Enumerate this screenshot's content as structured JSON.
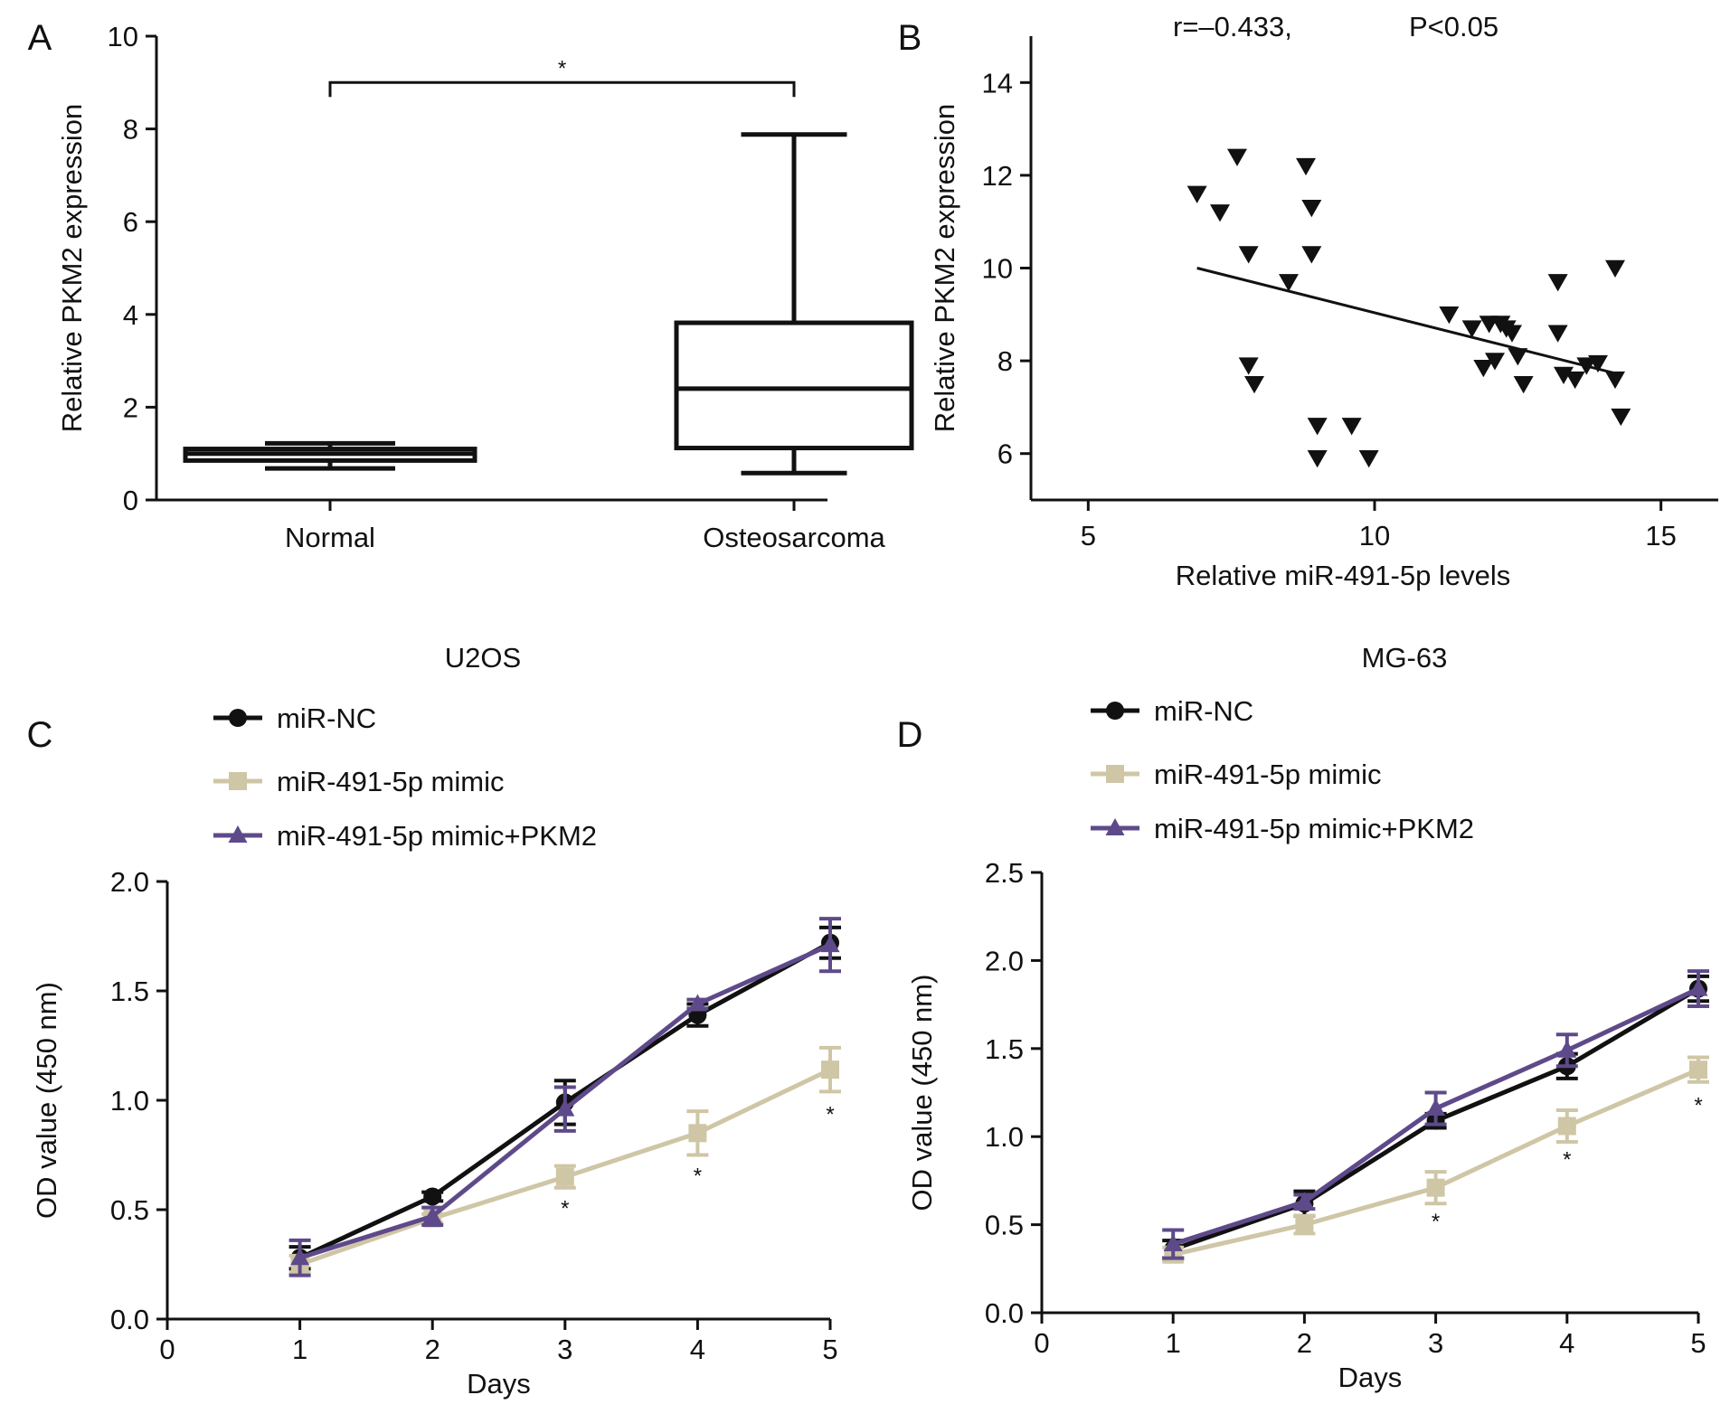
{
  "chart_data": [
    {
      "id": "A",
      "panel_label": "A",
      "type": "box",
      "ylabel": "Relative PKM2 expression",
      "xlabel": "",
      "ylim": [
        0,
        10
      ],
      "yticks": [
        0,
        2,
        4,
        6,
        8,
        10
      ],
      "categories": [
        "Normal",
        "Osteosarcoma"
      ],
      "boxes": [
        {
          "name": "Normal",
          "min": 0.68,
          "q1": 0.85,
          "median": 1.0,
          "q3": 1.1,
          "max": 1.22
        },
        {
          "name": "Osteosarcoma",
          "min": 0.58,
          "q1": 1.12,
          "median": 2.4,
          "q3": 3.82,
          "max": 7.88
        }
      ],
      "significance": {
        "label": "*",
        "level": 9.0,
        "between": [
          "Normal",
          "Osteosarcoma"
        ]
      }
    },
    {
      "id": "B",
      "panel_label": "B",
      "type": "scatter",
      "annotation_r": "r=–0.433,",
      "annotation_p": "P<0.05",
      "xlabel": "Relative miR-491-5p levels",
      "ylabel": "Relative PKM2 expression",
      "xlim": [
        4,
        16
      ],
      "ylim": [
        5,
        15
      ],
      "xticks": [
        5,
        10,
        15
      ],
      "yticks": [
        6,
        8,
        10,
        12,
        14
      ],
      "points": [
        [
          6.9,
          11.6
        ],
        [
          7.3,
          11.2
        ],
        [
          7.6,
          12.4
        ],
        [
          7.8,
          10.3
        ],
        [
          7.8,
          7.9
        ],
        [
          7.9,
          7.5
        ],
        [
          8.5,
          9.7
        ],
        [
          8.8,
          12.2
        ],
        [
          8.9,
          11.3
        ],
        [
          8.9,
          10.3
        ],
        [
          9.0,
          6.6
        ],
        [
          9.0,
          5.9
        ],
        [
          9.6,
          6.6
        ],
        [
          9.9,
          5.9
        ],
        [
          11.3,
          9.0
        ],
        [
          11.7,
          8.7
        ],
        [
          12.0,
          8.8
        ],
        [
          12.1,
          8.0
        ],
        [
          12.2,
          8.8
        ],
        [
          12.3,
          8.7
        ],
        [
          12.4,
          8.6
        ],
        [
          12.5,
          8.1
        ],
        [
          12.6,
          7.5
        ],
        [
          11.9,
          7.85
        ],
        [
          13.2,
          9.7
        ],
        [
          13.2,
          8.6
        ],
        [
          13.3,
          7.7
        ],
        [
          13.5,
          7.6
        ],
        [
          13.7,
          7.9
        ],
        [
          13.9,
          7.95
        ],
        [
          14.2,
          7.6
        ],
        [
          14.2,
          10.0
        ],
        [
          14.3,
          6.8
        ]
      ],
      "fit_line": {
        "x": [
          6.9,
          14.3
        ],
        "y": [
          10.0,
          7.7
        ]
      }
    },
    {
      "id": "C",
      "panel_label": "C",
      "type": "line",
      "title": "U2OS",
      "xlabel": "Days",
      "ylabel": "OD value (450 nm)",
      "xlim": [
        0,
        5
      ],
      "ylim": [
        0,
        2.0
      ],
      "xticks": [
        0,
        1,
        2,
        3,
        4,
        5
      ],
      "yticks": [
        0.0,
        0.5,
        1.0,
        1.5,
        2.0
      ],
      "ytick_labels": [
        "0.0",
        "0.5",
        "1.0",
        "1.5",
        "2.0"
      ],
      "x": [
        1,
        2,
        3,
        4,
        5
      ],
      "series": [
        {
          "name": "miR-NC",
          "color": "#111111",
          "marker": "circle",
          "values": [
            0.28,
            0.56,
            0.99,
            1.39,
            1.72
          ],
          "errors": [
            0.05,
            0.02,
            0.1,
            0.05,
            0.07
          ]
        },
        {
          "name": "miR-491-5p mimic",
          "color": "#cfc6a6",
          "marker": "square",
          "values": [
            0.25,
            0.46,
            0.65,
            0.85,
            1.14
          ],
          "errors": [
            0.04,
            0.02,
            0.05,
            0.1,
            0.1
          ]
        },
        {
          "name": "miR-491-5p mimic+PKM2",
          "color": "#5e4a8a",
          "marker": "triangle",
          "values": [
            0.28,
            0.47,
            0.96,
            1.44,
            1.71
          ],
          "errors": [
            0.08,
            0.04,
            0.1,
            0.02,
            0.12
          ]
        }
      ],
      "stars": [
        {
          "x": 3,
          "y": 0.53,
          "label": "*"
        },
        {
          "x": 4,
          "y": 0.68,
          "label": "*"
        },
        {
          "x": 5,
          "y": 0.96,
          "label": "*"
        }
      ]
    },
    {
      "id": "D",
      "panel_label": "D",
      "type": "line",
      "title": "MG-63",
      "xlabel": "Days",
      "ylabel": "OD value (450 nm)",
      "xlim": [
        0,
        5
      ],
      "ylim": [
        0,
        2.5
      ],
      "xticks": [
        0,
        1,
        2,
        3,
        4,
        5
      ],
      "yticks": [
        0.0,
        0.5,
        1.0,
        1.5,
        2.0,
        2.5
      ],
      "ytick_labels": [
        "0.0",
        "0.5",
        "1.0",
        "1.5",
        "2.0",
        "2.5"
      ],
      "x": [
        1,
        2,
        3,
        4,
        5
      ],
      "series": [
        {
          "name": "miR-NC",
          "color": "#111111",
          "marker": "circle",
          "values": [
            0.36,
            0.62,
            1.09,
            1.4,
            1.84
          ],
          "errors": [
            0.05,
            0.07,
            0.04,
            0.07,
            0.07
          ]
        },
        {
          "name": "miR-491-5p mimic",
          "color": "#cfc6a6",
          "marker": "square",
          "values": [
            0.33,
            0.5,
            0.71,
            1.06,
            1.38
          ],
          "errors": [
            0.04,
            0.05,
            0.09,
            0.09,
            0.07
          ]
        },
        {
          "name": "miR-491-5p mimic+PKM2",
          "color": "#5e4a8a",
          "marker": "triangle",
          "values": [
            0.39,
            0.63,
            1.16,
            1.49,
            1.84
          ],
          "errors": [
            0.08,
            0.04,
            0.09,
            0.09,
            0.1
          ]
        }
      ],
      "stars": [
        {
          "x": 3,
          "y": 0.55,
          "label": "*"
        },
        {
          "x": 4,
          "y": 0.9,
          "label": "*"
        },
        {
          "x": 5,
          "y": 1.21,
          "label": "*"
        }
      ]
    }
  ]
}
